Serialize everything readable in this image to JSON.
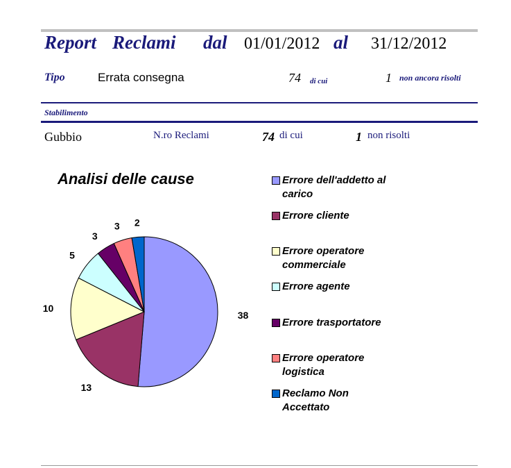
{
  "header": {
    "report_label": "Report",
    "reclami_label": "Reclami",
    "dal_label": "dal",
    "date_from": "01/01/2012",
    "al_label": "al",
    "date_to": "31/12/2012"
  },
  "tipo": {
    "label": "Tipo",
    "value": "Errata consegna",
    "count": "74",
    "di_cui": "di cui",
    "unresolved": "1",
    "unresolved_label": "non ancora risolti"
  },
  "stabilimento": {
    "label": "Stabilimento",
    "name": "Gubbio",
    "nro_label": "N.ro Reclami",
    "count": "74",
    "di_cui": "di cui",
    "unresolved": "1",
    "unresolved_label": "non risolti"
  },
  "chart_data": {
    "type": "pie",
    "title": "Analisi delle cause",
    "legend_position": "right",
    "categories": [
      "Errore dell'addetto al carico",
      "Errore cliente",
      "Errore operatore commerciale",
      "Errore agente",
      "Errore trasportatore",
      "Errore operatore logistica",
      "Reclamo Non Accettato"
    ],
    "legend_lines": [
      [
        "Errore dell'addetto al",
        "carico"
      ],
      [
        "Errore cliente"
      ],
      [
        "Errore operatore",
        "commerciale"
      ],
      [
        "Errore agente"
      ],
      [
        "Errore trasportatore"
      ],
      [
        "Errore operatore",
        "logistica"
      ],
      [
        "Reclamo Non",
        "Accettato"
      ]
    ],
    "values": [
      38,
      13,
      10,
      5,
      3,
      3,
      2
    ],
    "colors": [
      "#9999ff",
      "#993366",
      "#ffffcc",
      "#ccffff",
      "#660066",
      "#ff8080",
      "#0066cc"
    ]
  }
}
